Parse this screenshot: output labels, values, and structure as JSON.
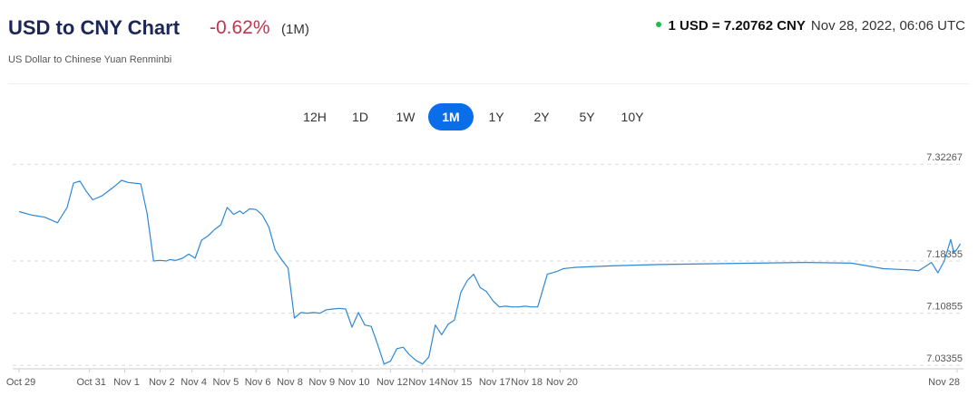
{
  "header": {
    "title": "USD to CNY Chart",
    "change": "-0.62%",
    "period": "(1M)",
    "rate": "1 USD = 7.20762 CNY",
    "timestamp": "Nov 28, 2022, 06:06 UTC",
    "subtitle": "US Dollar to Chinese Yuan Renminbi"
  },
  "colors": {
    "line": "#2f88d4",
    "accent": "#0a6ee8",
    "change": "#c4344f",
    "live_dot": "#1bbd4e"
  },
  "tabs": [
    {
      "label": "12H",
      "active": false
    },
    {
      "label": "1D",
      "active": false
    },
    {
      "label": "1W",
      "active": false
    },
    {
      "label": "1M",
      "active": true
    },
    {
      "label": "1Y",
      "active": false
    },
    {
      "label": "2Y",
      "active": false
    },
    {
      "label": "5Y",
      "active": false
    },
    {
      "label": "10Y",
      "active": false
    }
  ],
  "chart_data": {
    "type": "line",
    "yticks": [
      7.32267,
      7.18355,
      7.10855,
      7.03355
    ],
    "ytick_labels": [
      "7.32267",
      "7.18355",
      "7.10855",
      "7.03355"
    ],
    "xtick_labels": [
      "Oct 29",
      "Oct 31",
      "Nov 1",
      "Nov 2",
      "Nov 4",
      "Nov 5",
      "Nov 6",
      "Nov 8",
      "Nov 9",
      "Nov 10",
      "Nov 12",
      "Nov 14",
      "Nov 15",
      "Nov 17",
      "Nov 18",
      "Nov 20",
      "Nov 28"
    ],
    "xtick_days": [
      0,
      2.2,
      3.3,
      4.4,
      5.4,
      6.4,
      7.4,
      8.4,
      9.4,
      10.4,
      11.6,
      12.6,
      13.6,
      14.8,
      15.8,
      16.9,
      29.3
    ],
    "ylim": [
      7.02855,
      7.33467
    ],
    "xlim": [
      -0.2,
      29.5
    ],
    "grid": true,
    "legend": "none",
    "series": [
      {
        "x": [
          0,
          0.4,
          0.8,
          1.2,
          1.5,
          1.7,
          1.9,
          2.1,
          2.3,
          2.6,
          2.8,
          3.0,
          3.2,
          3.4,
          3.6,
          3.8,
          4.0,
          4.2,
          4.4,
          4.6,
          4.7,
          4.9,
          5.1,
          5.3,
          5.5,
          5.7,
          5.9,
          6.1,
          6.3,
          6.5,
          6.7,
          6.9,
          7.0,
          7.2,
          7.4,
          7.6,
          7.8,
          8.0,
          8.2,
          8.4,
          8.6,
          8.8,
          9.0,
          9.2,
          9.4,
          9.6,
          9.8,
          10.0,
          10.2,
          10.4,
          10.6,
          10.8,
          11.0,
          11.2,
          11.4,
          11.6,
          11.8,
          12.0,
          12.2,
          12.4,
          12.6,
          12.8,
          13.0,
          13.2,
          13.4,
          13.6,
          13.8,
          14.0,
          14.2,
          14.4,
          14.6,
          14.8,
          15.0,
          15.2,
          15.4,
          15.6,
          15.8,
          16.0,
          16.2,
          16.5,
          16.8,
          17.0,
          17.2,
          17.4,
          18.5,
          20.0,
          21.5,
          23.0,
          24.5,
          26.0,
          27.0,
          27.5,
          27.9,
          28.1,
          28.3,
          28.5,
          28.7,
          28.9,
          29.1,
          29.2,
          29.3,
          29.4
        ],
        "y": [
          7.2545,
          7.2495,
          7.2465,
          7.2385,
          7.2605,
          7.2955,
          7.2985,
          7.2835,
          7.2715,
          7.2775,
          7.2845,
          7.2915,
          7.2995,
          7.2965,
          7.2955,
          7.2945,
          7.2515,
          7.1835,
          7.1845,
          7.1835,
          7.1855,
          7.1845,
          7.1875,
          7.1935,
          7.1875,
          7.2135,
          7.2195,
          7.2285,
          7.2355,
          7.2605,
          7.2505,
          7.2555,
          7.2515,
          7.2585,
          7.2575,
          7.2495,
          7.2325,
          7.1995,
          7.1855,
          7.1735,
          7.1015,
          7.1095,
          7.1085,
          7.1095,
          7.1085,
          7.1135,
          7.1145,
          7.1155,
          7.1145,
          7.0885,
          7.1095,
          7.0915,
          7.0895,
          7.0635,
          7.0355,
          7.0395,
          7.0575,
          7.0595,
          7.0485,
          7.0405,
          7.0355,
          7.0455,
          7.0915,
          7.0775,
          7.0925,
          7.0985,
          7.1385,
          7.1555,
          7.1645,
          7.1455,
          7.1395,
          7.1265,
          7.1175,
          7.1185,
          7.1175,
          7.1175,
          7.1185,
          7.1175,
          7.1175,
          7.1645,
          7.1685,
          7.1725,
          7.1735,
          7.1745,
          7.1765,
          7.1785,
          7.1795,
          7.1805,
          7.1815,
          7.1805,
          7.1725,
          7.1715,
          7.1705,
          7.1695,
          7.1755,
          7.1815,
          7.1665,
          7.1835,
          7.2145,
          7.1955,
          7.2005,
          7.2085
        ]
      }
    ]
  }
}
